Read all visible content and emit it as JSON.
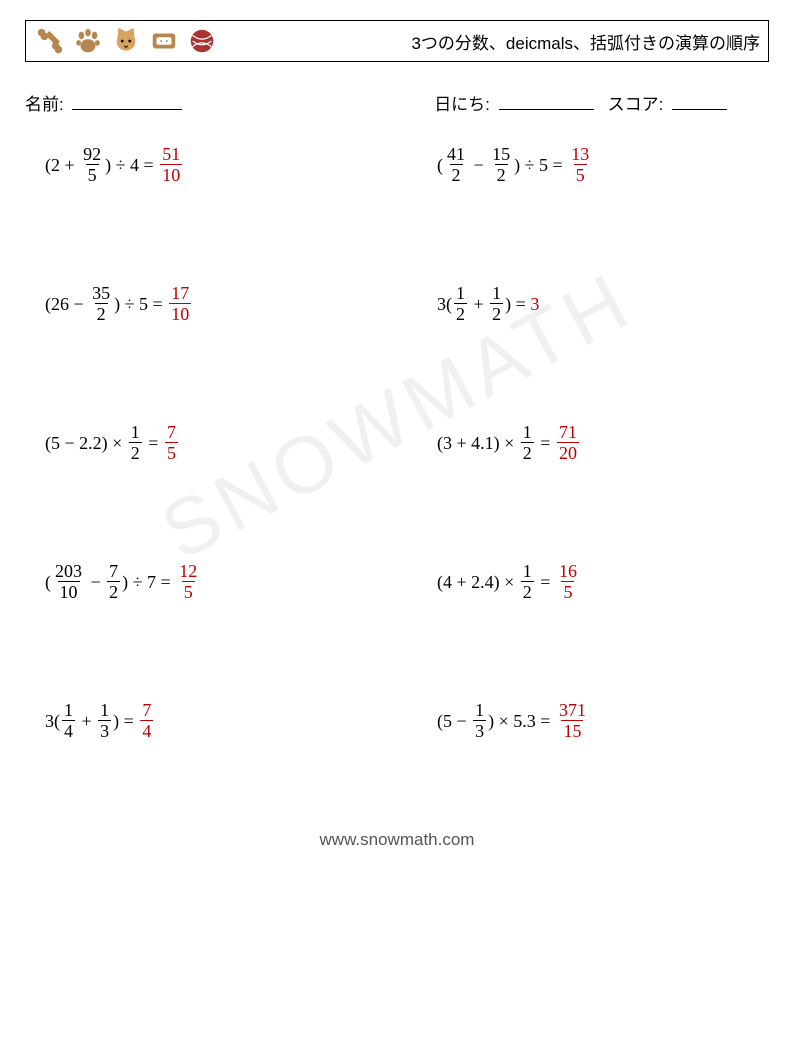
{
  "header": {
    "title": "3つの分数、deicmals、括弧付きの演算の順序",
    "icons": [
      "bone",
      "paw",
      "cat-face",
      "pet-bed",
      "yarn-ball"
    ],
    "icon_tint": "#b5874f"
  },
  "fields": {
    "name_label": "名前:",
    "name_underline_width": 110,
    "date_label": "日にち:",
    "date_underline_width": 95,
    "score_label": "スコア:",
    "score_underline_width": 55
  },
  "colors": {
    "text": "#000000",
    "answer": "#be0000",
    "background": "#ffffff"
  },
  "typography": {
    "text_fontsize": 18,
    "title_fontsize": 17,
    "field_fontsize": 17
  },
  "problems": [
    [
      {
        "pre": "(2 + ",
        "frac1": [
          "92",
          "5"
        ],
        "mid": ") ÷ 4 = ",
        "ans_frac": [
          "51",
          "10"
        ]
      },
      {
        "pre": "(",
        "frac1": [
          "41",
          "2"
        ],
        "mid": " − ",
        "frac2": [
          "15",
          "2"
        ],
        "post": ") ÷ 5 = ",
        "ans_frac": [
          "13",
          "5"
        ]
      }
    ],
    [
      {
        "pre": "(26 − ",
        "frac1": [
          "35",
          "2"
        ],
        "mid": ") ÷ 5 = ",
        "ans_frac": [
          "17",
          "10"
        ]
      },
      {
        "pre": "3(",
        "frac1": [
          "1",
          "2"
        ],
        "mid": " + ",
        "frac2": [
          "1",
          "2"
        ],
        "post": ") = ",
        "ans_text": "3"
      }
    ],
    [
      {
        "pre": "(5 − 2.2) × ",
        "frac1": [
          "1",
          "2"
        ],
        "mid": " = ",
        "ans_frac": [
          "7",
          "5"
        ]
      },
      {
        "pre": "(3 + 4.1) × ",
        "frac1": [
          "1",
          "2"
        ],
        "mid": " = ",
        "ans_frac": [
          "71",
          "20"
        ]
      }
    ],
    [
      {
        "pre": "(",
        "frac1": [
          "203",
          "10"
        ],
        "mid": " − ",
        "frac2": [
          "7",
          "2"
        ],
        "post": ") ÷ 7 = ",
        "ans_frac": [
          "12",
          "5"
        ]
      },
      {
        "pre": "(4 + 2.4) × ",
        "frac1": [
          "1",
          "2"
        ],
        "mid": " = ",
        "ans_frac": [
          "16",
          "5"
        ]
      }
    ],
    [
      {
        "pre": "3(",
        "frac1": [
          "1",
          "4"
        ],
        "mid": " + ",
        "frac2": [
          "1",
          "3"
        ],
        "post": ") = ",
        "ans_frac": [
          "7",
          "4"
        ]
      },
      {
        "pre": "(5 − ",
        "frac1": [
          "1",
          "3"
        ],
        "mid": ") × 5.3 = ",
        "ans_frac": [
          "371",
          "15"
        ]
      }
    ]
  ],
  "watermark": "SNOWMATH",
  "footer": "www.snowmath.com"
}
